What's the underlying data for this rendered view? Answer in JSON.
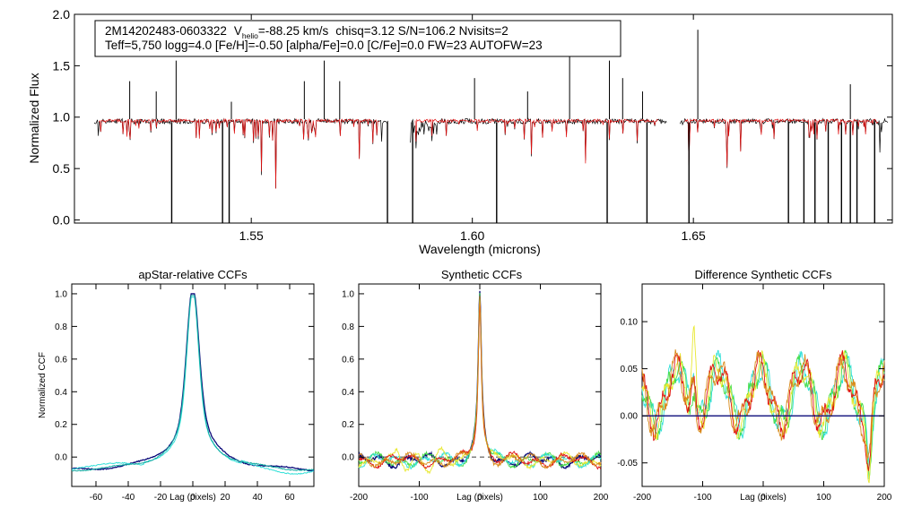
{
  "colors": {
    "black": "#000000",
    "red": "#e01010",
    "navy": "#0b0b7a",
    "teal": "#12a8a0",
    "cyan": "#33e0d8",
    "green": "#44dd44",
    "yellow": "#e8e830",
    "orange": "#d98a1a",
    "gray": "#555555"
  },
  "chart_data": [
    {
      "type": "line",
      "title": "",
      "xlabel": "Wavelength (microns)",
      "ylabel": "Normalized Flux",
      "xlim": [
        1.51,
        1.695
      ],
      "ylim": [
        -0.03,
        2.0
      ],
      "xticks": [
        1.55,
        1.6,
        1.65
      ],
      "xtick_labels": [
        "1.55",
        "1.60",
        "1.65"
      ],
      "yticks": [
        0.0,
        0.5,
        1.0,
        1.5,
        2.0
      ],
      "ytick_labels": [
        "0.0",
        "0.5",
        "1.0",
        "1.5",
        "2.0"
      ],
      "chips": [
        [
          1.5145,
          1.581
        ],
        [
          1.586,
          1.644
        ],
        [
          1.647,
          1.694
        ]
      ],
      "series": [
        {
          "name": "observed",
          "color": "black",
          "baseline": 0.96
        },
        {
          "name": "model",
          "color": "red",
          "baseline": 0.965
        }
      ],
      "emission_spikes": [
        1.5225,
        1.5285,
        1.533,
        1.5455,
        1.562,
        1.5665,
        1.57,
        1.6005,
        1.6125,
        1.622,
        1.631,
        1.634,
        1.6385,
        1.651,
        1.6855
      ],
      "spike_heights": [
        1.35,
        1.25,
        1.55,
        1.15,
        1.35,
        1.55,
        1.35,
        1.38,
        1.25,
        1.65,
        1.55,
        1.38,
        1.25,
        1.85,
        1.32
      ],
      "deep_lines": [
        1.532,
        1.5435,
        1.545,
        1.5808,
        1.5865,
        1.6055,
        1.6305,
        1.6395,
        1.649,
        1.6715,
        1.675,
        1.6775,
        1.6805,
        1.6835,
        1.6855,
        1.687,
        1.691
      ],
      "annotation_box": {
        "line1": {
          "star": "2M14202483-0603322",
          "vhelio_label": "V",
          "vhelio_sub": "helio",
          "vhelio_val": "=-88.25 km/s",
          "rest": "chisq=3.12  S/N=106.2  Nvisits=2"
        },
        "line2": "Teff=5,750 logg=4.0 [Fe/H]=-0.50 [alpha/Fe]=0.0 [C/Fe]=0.0 FW=23 AUTOFW=23"
      }
    },
    {
      "type": "line",
      "title": "apStar-relative CCFs",
      "xlabel": "Lag (pixels)",
      "ylabel": "Normalized CCF",
      "xlim": [
        -75,
        75
      ],
      "ylim": [
        -0.18,
        1.06
      ],
      "xticks": [
        -60,
        -40,
        -20,
        0,
        20,
        40,
        60
      ],
      "xtick_labels": [
        "-60",
        "-40",
        "-20",
        "0",
        "20",
        "40",
        "60"
      ],
      "yticks": [
        0.0,
        0.2,
        0.4,
        0.6,
        0.8,
        1.0
      ],
      "ytick_labels": [
        "0.0",
        "0.2",
        "0.4",
        "0.6",
        "0.8",
        "1.0"
      ],
      "series": [
        {
          "name": "visit-1",
          "color": "navy",
          "peak": 1.0,
          "width": 6.5,
          "wings": 0.22
        },
        {
          "name": "visit-2",
          "color": "cyan",
          "peak": 0.98,
          "width": 6.0,
          "wings": 0.2
        },
        {
          "name": "combined",
          "color": "teal",
          "peak": 0.99,
          "width": 6.2,
          "wings": 0.21
        }
      ]
    },
    {
      "type": "line",
      "title": "Synthetic CCFs",
      "xlabel": "Lag (pixels)",
      "ylabel": "",
      "xlim": [
        -200,
        200
      ],
      "ylim": [
        -0.18,
        1.06
      ],
      "xticks": [
        -200,
        -100,
        0,
        100,
        200
      ],
      "xtick_labels": [
        "-200",
        "-100",
        "0",
        "100",
        "200"
      ],
      "yticks": [
        0.0,
        0.2,
        0.4,
        0.6,
        0.8,
        1.0
      ],
      "ytick_labels": [
        "0.0",
        "0.2",
        "0.4",
        "0.6",
        "0.8",
        "1.0"
      ],
      "reference_line": 0.0,
      "series": [
        {
          "name": "ccf-navy",
          "color": "navy"
        },
        {
          "name": "ccf-green",
          "color": "green"
        },
        {
          "name": "ccf-cyan",
          "color": "cyan"
        },
        {
          "name": "ccf-yellow",
          "color": "yellow"
        },
        {
          "name": "ccf-red",
          "color": "red"
        },
        {
          "name": "ccf-orange",
          "color": "orange"
        }
      ]
    },
    {
      "type": "line",
      "title": "Difference Synthetic CCFs",
      "xlabel": "Lag (pixels)",
      "ylabel": "",
      "xlim": [
        -200,
        200
      ],
      "ylim": [
        -0.075,
        0.14
      ],
      "xticks": [
        -200,
        -100,
        0,
        100,
        200
      ],
      "xtick_labels": [
        "-200",
        "-100",
        "0",
        "100",
        "200"
      ],
      "yticks": [
        -0.05,
        0.0,
        0.05,
        0.1
      ],
      "ytick_labels": [
        "-0.05",
        "0.00",
        "0.05",
        "0.10"
      ],
      "reference_line": 0.0,
      "series": [
        {
          "name": "diff-cyan",
          "color": "cyan"
        },
        {
          "name": "diff-green",
          "color": "green"
        },
        {
          "name": "diff-yellow",
          "color": "yellow"
        },
        {
          "name": "diff-red",
          "color": "red"
        },
        {
          "name": "diff-brown",
          "color": "orange"
        }
      ]
    }
  ]
}
